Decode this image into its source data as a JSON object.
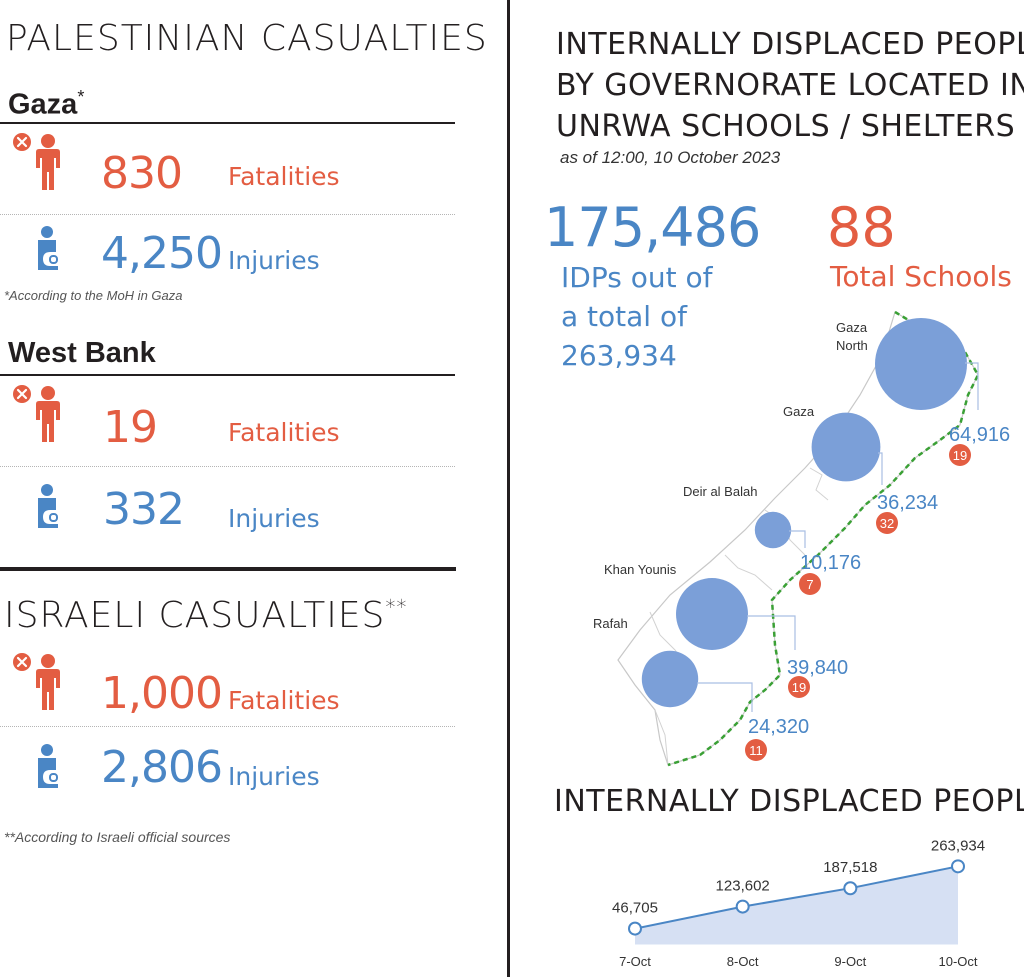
{
  "colors": {
    "red": "#e35d42",
    "blue": "#4a86c5",
    "dark": "#231f20",
    "bubble": "#7b9fd8",
    "border_green": "#3aa035",
    "area_fill": "#d6e0f3"
  },
  "palestinian": {
    "title": "PALESTINIAN CASUALTIES",
    "gaza": {
      "title": "Gaza",
      "title_mark": "*",
      "fatalities": {
        "value": "830",
        "label": "Fatalities",
        "icon": "fatality-person-icon"
      },
      "injuries": {
        "value": "4,250",
        "label": "Injuries",
        "icon": "injured-person-icon"
      },
      "note": "*According to the MoH in Gaza"
    },
    "west_bank": {
      "title": "West Bank",
      "fatalities": {
        "value": "19",
        "label": "Fatalities",
        "icon": "fatality-person-icon"
      },
      "injuries": {
        "value": "332",
        "label": "Injuries",
        "icon": "injured-person-icon"
      }
    }
  },
  "israeli": {
    "title": "ISRAELI CASUALTIES",
    "title_mark": "**",
    "fatalities": {
      "value": "1,000",
      "label": "Fatalities",
      "icon": "fatality-person-icon"
    },
    "injuries": {
      "value": "2,806",
      "label": "Injuries",
      "icon": "injured-person-icon"
    },
    "note": "**According to Israeli official sources"
  },
  "idp_governorate": {
    "title_lines": [
      "INTERNALLY DISPLACED PEOPLE",
      "BY GOVERNORATE LOCATED IN",
      "UNRWA SCHOOLS / SHELTERS"
    ],
    "as_of": "as of 12:00, 10 October 2023",
    "total_idps": "175,486",
    "idps_text_lines": [
      "IDPs out of",
      "a total of",
      "263,934"
    ],
    "total_schools": "88",
    "schools_label": "Total Schools"
  },
  "chart_data": [
    {
      "type": "bubble-map",
      "title": "Internally displaced people by governorate located in UNRWA schools / shelters",
      "series": [
        {
          "name": "Gaza North",
          "name_lines": [
            "Gaza",
            "North"
          ],
          "idps": 64916,
          "idps_label": "64,916",
          "schools": 19
        },
        {
          "name": "Gaza",
          "name_lines": [
            "Gaza"
          ],
          "idps": 36234,
          "idps_label": "36,234",
          "schools": 32
        },
        {
          "name": "Deir al Balah",
          "name_lines": [
            "Deir al Balah"
          ],
          "idps": 10176,
          "idps_label": "10,176",
          "schools": 7
        },
        {
          "name": "Khan Younis",
          "name_lines": [
            "Khan Younis"
          ],
          "idps": 39840,
          "idps_label": "39,840",
          "schools": 19
        },
        {
          "name": "Rafah",
          "name_lines": [
            "Rafah"
          ],
          "idps": 24320,
          "idps_label": "24,320",
          "schools": 11
        }
      ]
    },
    {
      "type": "area",
      "title": "INTERNALLY DISPLACED PEOPLE",
      "categories": [
        "7-Oct",
        "8-Oct",
        "9-Oct",
        "10-Oct"
      ],
      "values": [
        46705,
        123602,
        187518,
        263934
      ],
      "value_labels": [
        "46,705",
        "123,602",
        "187,518",
        "263,934"
      ],
      "ylim": [
        0,
        300000
      ],
      "grid": false
    }
  ]
}
